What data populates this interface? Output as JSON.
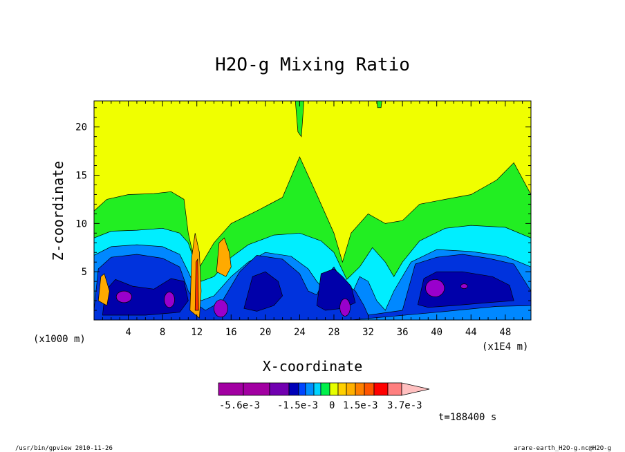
{
  "chart_data": {
    "type": "heatmap",
    "title": "H2O-g Mixing Ratio",
    "xlabel": "X-coordinate",
    "ylabel": "Z-coordinate",
    "x_unit_note": "(x1000 m)",
    "x_unit_note2": "(x1E4 m)",
    "xlim": [
      0,
      51
    ],
    "ylim": [
      0,
      22.7
    ],
    "x_ticks": [
      4,
      8,
      12,
      16,
      20,
      24,
      28,
      32,
      36,
      40,
      44,
      48
    ],
    "y_ticks": [
      5,
      10,
      15,
      20
    ],
    "time_label": "t=188400 s",
    "colorbar": {
      "colors": [
        "#a200a2",
        "#a200a2",
        "#7100b0",
        "#0000b8",
        "#0045ff",
        "#0090ff",
        "#00d4ff",
        "#00f04a",
        "#e6ff00",
        "#ffd000",
        "#ffb000",
        "#ff8000",
        "#ff5500",
        "#ff0000",
        "#ff7f7f",
        "#ffc0c0"
      ],
      "labels": [
        "-5.6e-3",
        "-1.5e-3",
        "0",
        "1.5e-3",
        "3.7e-3"
      ]
    },
    "field_levels": {
      "yellow": "#f0ff00",
      "green": "#22ee22",
      "cyan": "#00eeff",
      "lightblue": "#0088ff",
      "blue": "#0033dd",
      "darkblue": "#0000aa",
      "purple": "#9900cc",
      "orange": "#ffaa00"
    }
  },
  "footer": {
    "left": "/usr/bin/gpview  2010-11-26",
    "right": "arare-earth_H2O-g.nc@H2O-g"
  }
}
